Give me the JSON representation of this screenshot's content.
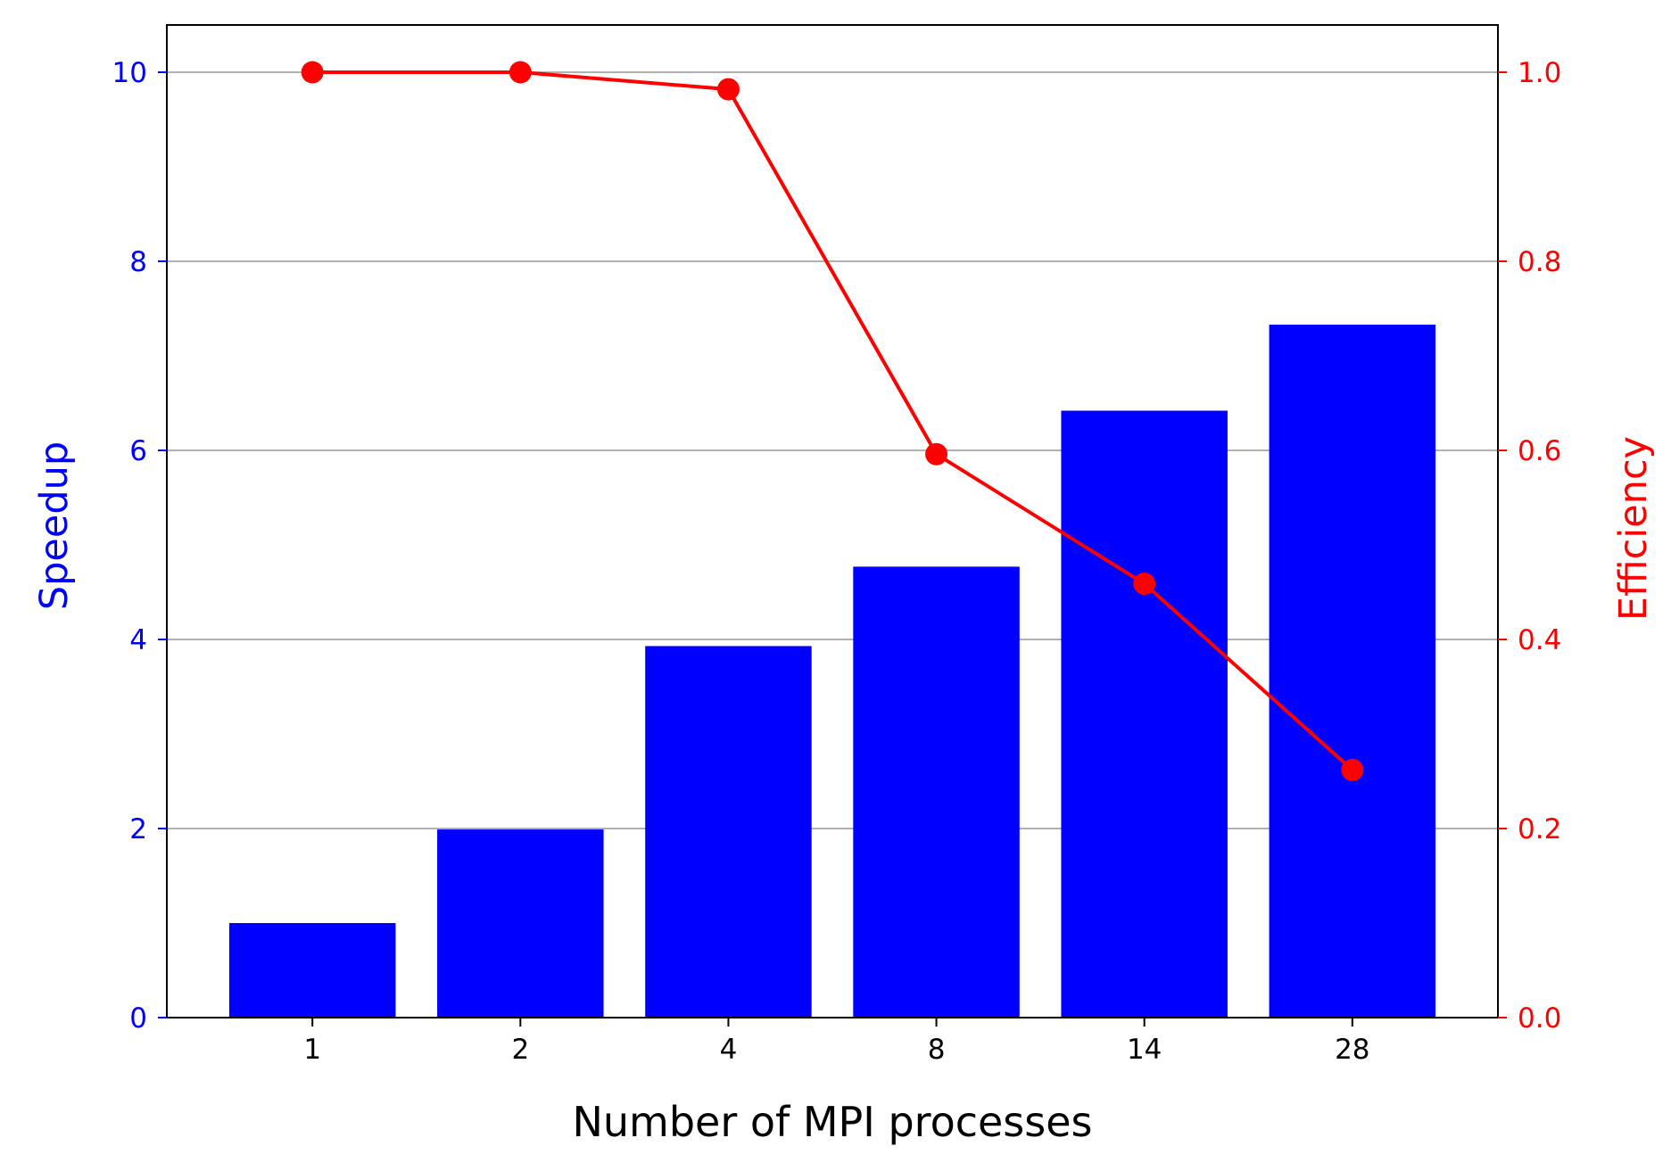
{
  "chart_data": {
    "type": "bar",
    "xlabel": "Number of MPI processes",
    "categories": [
      "1",
      "2",
      "4",
      "8",
      "14",
      "28"
    ],
    "series": [
      {
        "type": "bar",
        "axis": "left",
        "color": "#0000ff",
        "values": [
          1.0,
          1.99,
          3.93,
          4.77,
          6.42,
          7.33
        ]
      },
      {
        "type": "line",
        "axis": "right",
        "color": "#ff0000",
        "marker": "circle",
        "values": [
          1.0,
          1.0,
          0.982,
          0.596,
          0.459,
          0.262
        ]
      }
    ],
    "y_left": {
      "label": "Speedup",
      "color": "#0000ff",
      "lim": [
        0,
        10.5
      ],
      "ticks": [
        0,
        2,
        4,
        6,
        8,
        10
      ],
      "tick_labels": [
        "0",
        "2",
        "4",
        "6",
        "8",
        "10"
      ]
    },
    "y_right": {
      "label": "Efficiency",
      "color": "#ff0000",
      "lim": [
        0,
        1.05
      ],
      "ticks": [
        0,
        0.2,
        0.4,
        0.6,
        0.8,
        1.0
      ],
      "tick_labels": [
        "0.0",
        "0.2",
        "0.4",
        "0.6",
        "0.8",
        "1.0"
      ]
    },
    "grid": "horizontal",
    "grid_color": "#b0b0b0"
  }
}
